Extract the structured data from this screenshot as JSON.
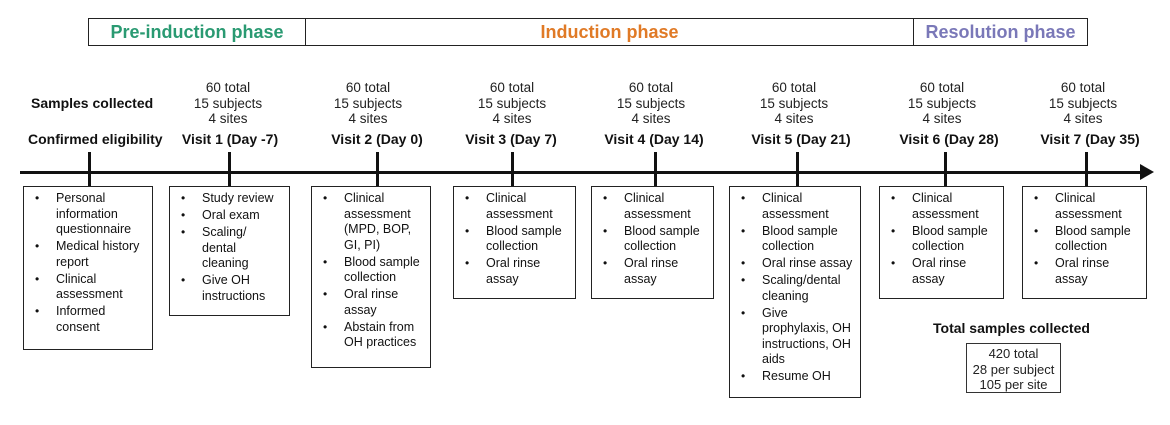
{
  "phases": {
    "pre": "Pre-induction phase",
    "induction": "Induction phase",
    "resolution": "Resolution phase"
  },
  "labels": {
    "samples_collected": "Samples collected",
    "confirmed_eligibility": "Confirmed eligibility"
  },
  "samples": [
    {
      "total": "60 total",
      "subjects": "15 subjects",
      "sites": "4 sites"
    },
    {
      "total": "60 total",
      "subjects": "15 subjects",
      "sites": "4 sites"
    },
    {
      "total": "60 total",
      "subjects": "15 subjects",
      "sites": "4 sites"
    },
    {
      "total": "60 total",
      "subjects": "15 subjects",
      "sites": "4 sites"
    },
    {
      "total": "60 total",
      "subjects": "15 subjects",
      "sites": "4 sites"
    },
    {
      "total": "60 total",
      "subjects": "15 subjects",
      "sites": "4 sites"
    },
    {
      "total": "60 total",
      "subjects": "15 subjects",
      "sites": "4 sites"
    }
  ],
  "visits": [
    "Visit 1 (Day -7)",
    "Visit 2 (Day 0)",
    "Visit 3 (Day 7)",
    "Visit 4 (Day 14)",
    "Visit 5 (Day 21)",
    "Visit 6 (Day 28)",
    "Visit 7 (Day 35)"
  ],
  "boxes": {
    "eligibility": [
      "Personal information questionnaire",
      "Medical history report",
      "Clinical assessment",
      "Informed consent"
    ],
    "visit1": [
      "Study review",
      "Oral exam",
      "Scaling/ dental cleaning",
      "Give OH instructions"
    ],
    "visit2": [
      "Clinical assessment (MPD, BOP, GI, PI)",
      "Blood sample collection",
      "Oral rinse assay",
      "Abstain from OH practices"
    ],
    "visit3": [
      "Clinical assessment",
      "Blood sample collection",
      "Oral rinse assay"
    ],
    "visit4": [
      "Clinical assessment",
      "Blood sample collection",
      "Oral rinse assay"
    ],
    "visit5": [
      "Clinical assessment",
      "Blood sample collection",
      "Oral rinse assay",
      "Scaling/dental cleaning",
      "Give prophylaxis, OH instructions, OH aids",
      "Resume OH"
    ],
    "visit6": [
      "Clinical assessment",
      "Blood sample collection",
      "Oral rinse assay"
    ],
    "visit7": [
      "Clinical assessment",
      "Blood sample collection",
      "Oral rinse assay"
    ]
  },
  "totals": {
    "heading": "Total samples collected",
    "total": "420 total",
    "per_subject": "28 per subject",
    "per_site": "105 per site"
  }
}
